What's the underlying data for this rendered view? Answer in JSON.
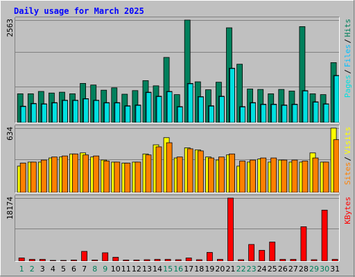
{
  "chart_data": {
    "type": "bar",
    "title": "Daily usage for March 2025",
    "categories": [
      "1",
      "2",
      "3",
      "4",
      "5",
      "6",
      "7",
      "8",
      "9",
      "10",
      "11",
      "12",
      "13",
      "14",
      "15",
      "16",
      "17",
      "18",
      "19",
      "20",
      "21",
      "22",
      "23",
      "24",
      "25",
      "26",
      "27",
      "28",
      "29",
      "30",
      "31"
    ],
    "weekend_days": [
      "1",
      "2",
      "8",
      "9",
      "15",
      "16",
      "22",
      "23",
      "29",
      "30"
    ],
    "colors": {
      "hits": "#00805c",
      "files": "#00c0ff",
      "pages": "#00e0e0",
      "visits": "#ffff00",
      "sites": "#ff8000",
      "kbytes": "#ff0000",
      "title": "#0000ff",
      "day_weekday": "#000000",
      "day_weekend": "#00805c"
    },
    "panels": [
      {
        "id": "usage",
        "ymax": 2563,
        "ymax_label": "2563",
        "legend": [
          {
            "label": "Hits",
            "color": "#00805c"
          },
          {
            "label": "/",
            "color": "#000000"
          },
          {
            "label": "Files",
            "color": "#00c0ff"
          },
          {
            "label": "/",
            "color": "#000000"
          },
          {
            "label": "Pages",
            "color": "#00e0e0"
          }
        ],
        "series": [
          {
            "name": "Hits",
            "color": "#00805c",
            "values": [
              720,
              720,
              780,
              740,
              760,
              720,
              980,
              940,
              810,
              870,
              710,
              800,
              1050,
              920,
              1630,
              700,
              2563,
              1020,
              820,
              1010,
              2370,
              1460,
              840,
              830,
              720,
              830,
              790,
              2400,
              720,
              700,
              1500
            ]
          },
          {
            "name": "Files",
            "color": "#00c0ff",
            "values": [
              410,
              480,
              470,
              500,
              560,
              560,
              600,
              560,
              500,
              500,
              420,
              440,
              760,
              660,
              780,
              400,
              980,
              650,
              420,
              660,
              1360,
              400,
              500,
              460,
              460,
              440,
              460,
              800,
              520,
              470,
              1180
            ]
          },
          {
            "name": "Pages",
            "color": "#00e0e0",
            "values": [
              400,
              470,
              460,
              490,
              550,
              550,
              590,
              550,
              490,
              490,
              410,
              430,
              750,
              650,
              770,
              390,
              970,
              640,
              410,
              650,
              1350,
              390,
              490,
              450,
              450,
              430,
              450,
              790,
              510,
              460,
              1170
            ]
          }
        ]
      },
      {
        "id": "visitors",
        "ymax": 634,
        "ymax_label": "634",
        "legend": [
          {
            "label": "Visits",
            "color": "#ffff00"
          },
          {
            "label": "/",
            "color": "#000000"
          },
          {
            "label": "Sites",
            "color": "#ff8000"
          }
        ],
        "series": [
          {
            "name": "Visits",
            "color": "#ffff00",
            "values": [
              260,
              300,
              300,
              340,
              350,
              380,
              390,
              350,
              320,
              300,
              290,
              300,
              380,
              470,
              540,
              340,
              440,
              420,
              350,
              320,
              370,
              260,
              300,
              330,
              300,
              320,
              300,
              300,
              390,
              300,
              634
            ]
          },
          {
            "name": "Sites",
            "color": "#ff8000",
            "values": [
              290,
              300,
              320,
              350,
              360,
              380,
              370,
              360,
              310,
              300,
              290,
              300,
              370,
              450,
              490,
              350,
              430,
              410,
              340,
              350,
              380,
              310,
              320,
              340,
              340,
              320,
              320,
              310,
              340,
              300,
              520
            ]
          }
        ]
      },
      {
        "id": "transfer",
        "ymax": 18174,
        "ymax_label": "18174",
        "legend": [
          {
            "label": "KBytes",
            "color": "#ff0000"
          }
        ],
        "series": [
          {
            "name": "KBytes",
            "color": "#ff0000",
            "values": [
              900,
              500,
              500,
              200,
              200,
              300,
              2800,
              300,
              2400,
              1100,
              300,
              300,
              400,
              500,
              500,
              400,
              900,
              400,
              2500,
              500,
              18174,
              400,
              4800,
              3100,
              5500,
              500,
              500,
              9900,
              400,
              14700,
              500
            ]
          }
        ]
      }
    ]
  }
}
